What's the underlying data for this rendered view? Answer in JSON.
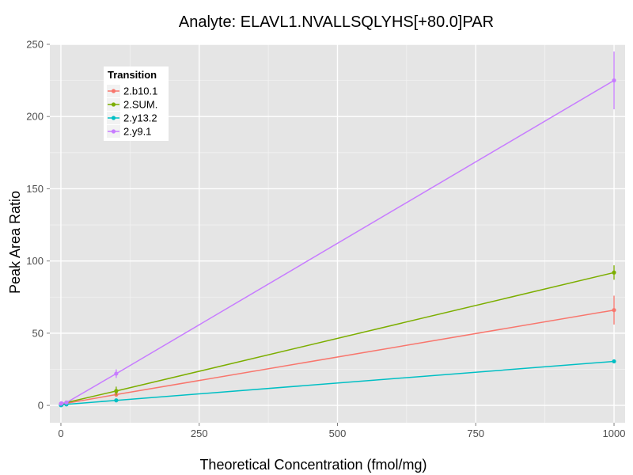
{
  "chart_data": {
    "type": "line",
    "title": "Analyte: ELAVL1.NVALLSQLYHS[+80.0]PAR",
    "xlabel": "Theoretical Concentration (fmol/mg)",
    "ylabel": "Peak Area Ratio",
    "xlim": [
      -20,
      1020
    ],
    "ylim": [
      -12,
      250
    ],
    "x_ticks": [
      0,
      250,
      500,
      750,
      1000
    ],
    "y_ticks": [
      0,
      50,
      100,
      150,
      200,
      250
    ],
    "x_tick_labels": [
      "0",
      "250",
      "500",
      "750",
      "1000"
    ],
    "y_tick_labels": [
      "0",
      "50",
      "100",
      "150",
      "200",
      "250"
    ],
    "grid": true,
    "legend": {
      "title": "Transition",
      "position": "top-left"
    },
    "series": [
      {
        "name": "2.b10.1",
        "color": "#F8766D",
        "points": [
          {
            "x": 0,
            "y": 0.5,
            "err": 0.5
          },
          {
            "x": 1,
            "y": 0.8,
            "err": 0.5
          },
          {
            "x": 10,
            "y": 1.5,
            "err": 0.8
          },
          {
            "x": 100,
            "y": 7.5,
            "err": 1.5
          },
          {
            "x": 1000,
            "y": 66,
            "err": 10
          }
        ]
      },
      {
        "name": "2.SUM.",
        "color": "#7CAE00",
        "points": [
          {
            "x": 0,
            "y": 0.6,
            "err": 0.5
          },
          {
            "x": 1,
            "y": 1.0,
            "err": 0.5
          },
          {
            "x": 10,
            "y": 2.0,
            "err": 0.8
          },
          {
            "x": 100,
            "y": 10,
            "err": 3
          },
          {
            "x": 1000,
            "y": 92,
            "err": 5
          }
        ]
      },
      {
        "name": "2.y13.2",
        "color": "#00BFC4",
        "points": [
          {
            "x": 0,
            "y": 0.2,
            "err": 0.3
          },
          {
            "x": 1,
            "y": 0.3,
            "err": 0.3
          },
          {
            "x": 10,
            "y": 0.7,
            "err": 0.4
          },
          {
            "x": 100,
            "y": 3.5,
            "err": 1
          },
          {
            "x": 1000,
            "y": 30.5,
            "err": 1
          }
        ]
      },
      {
        "name": "2.y9.1",
        "color": "#C77CFF",
        "points": [
          {
            "x": 0,
            "y": 1.2,
            "err": 0.8
          },
          {
            "x": 1,
            "y": 1.5,
            "err": 0.8
          },
          {
            "x": 10,
            "y": 2.0,
            "err": 1
          },
          {
            "x": 100,
            "y": 22,
            "err": 3
          },
          {
            "x": 1000,
            "y": 225,
            "err": 20
          }
        ]
      }
    ]
  }
}
